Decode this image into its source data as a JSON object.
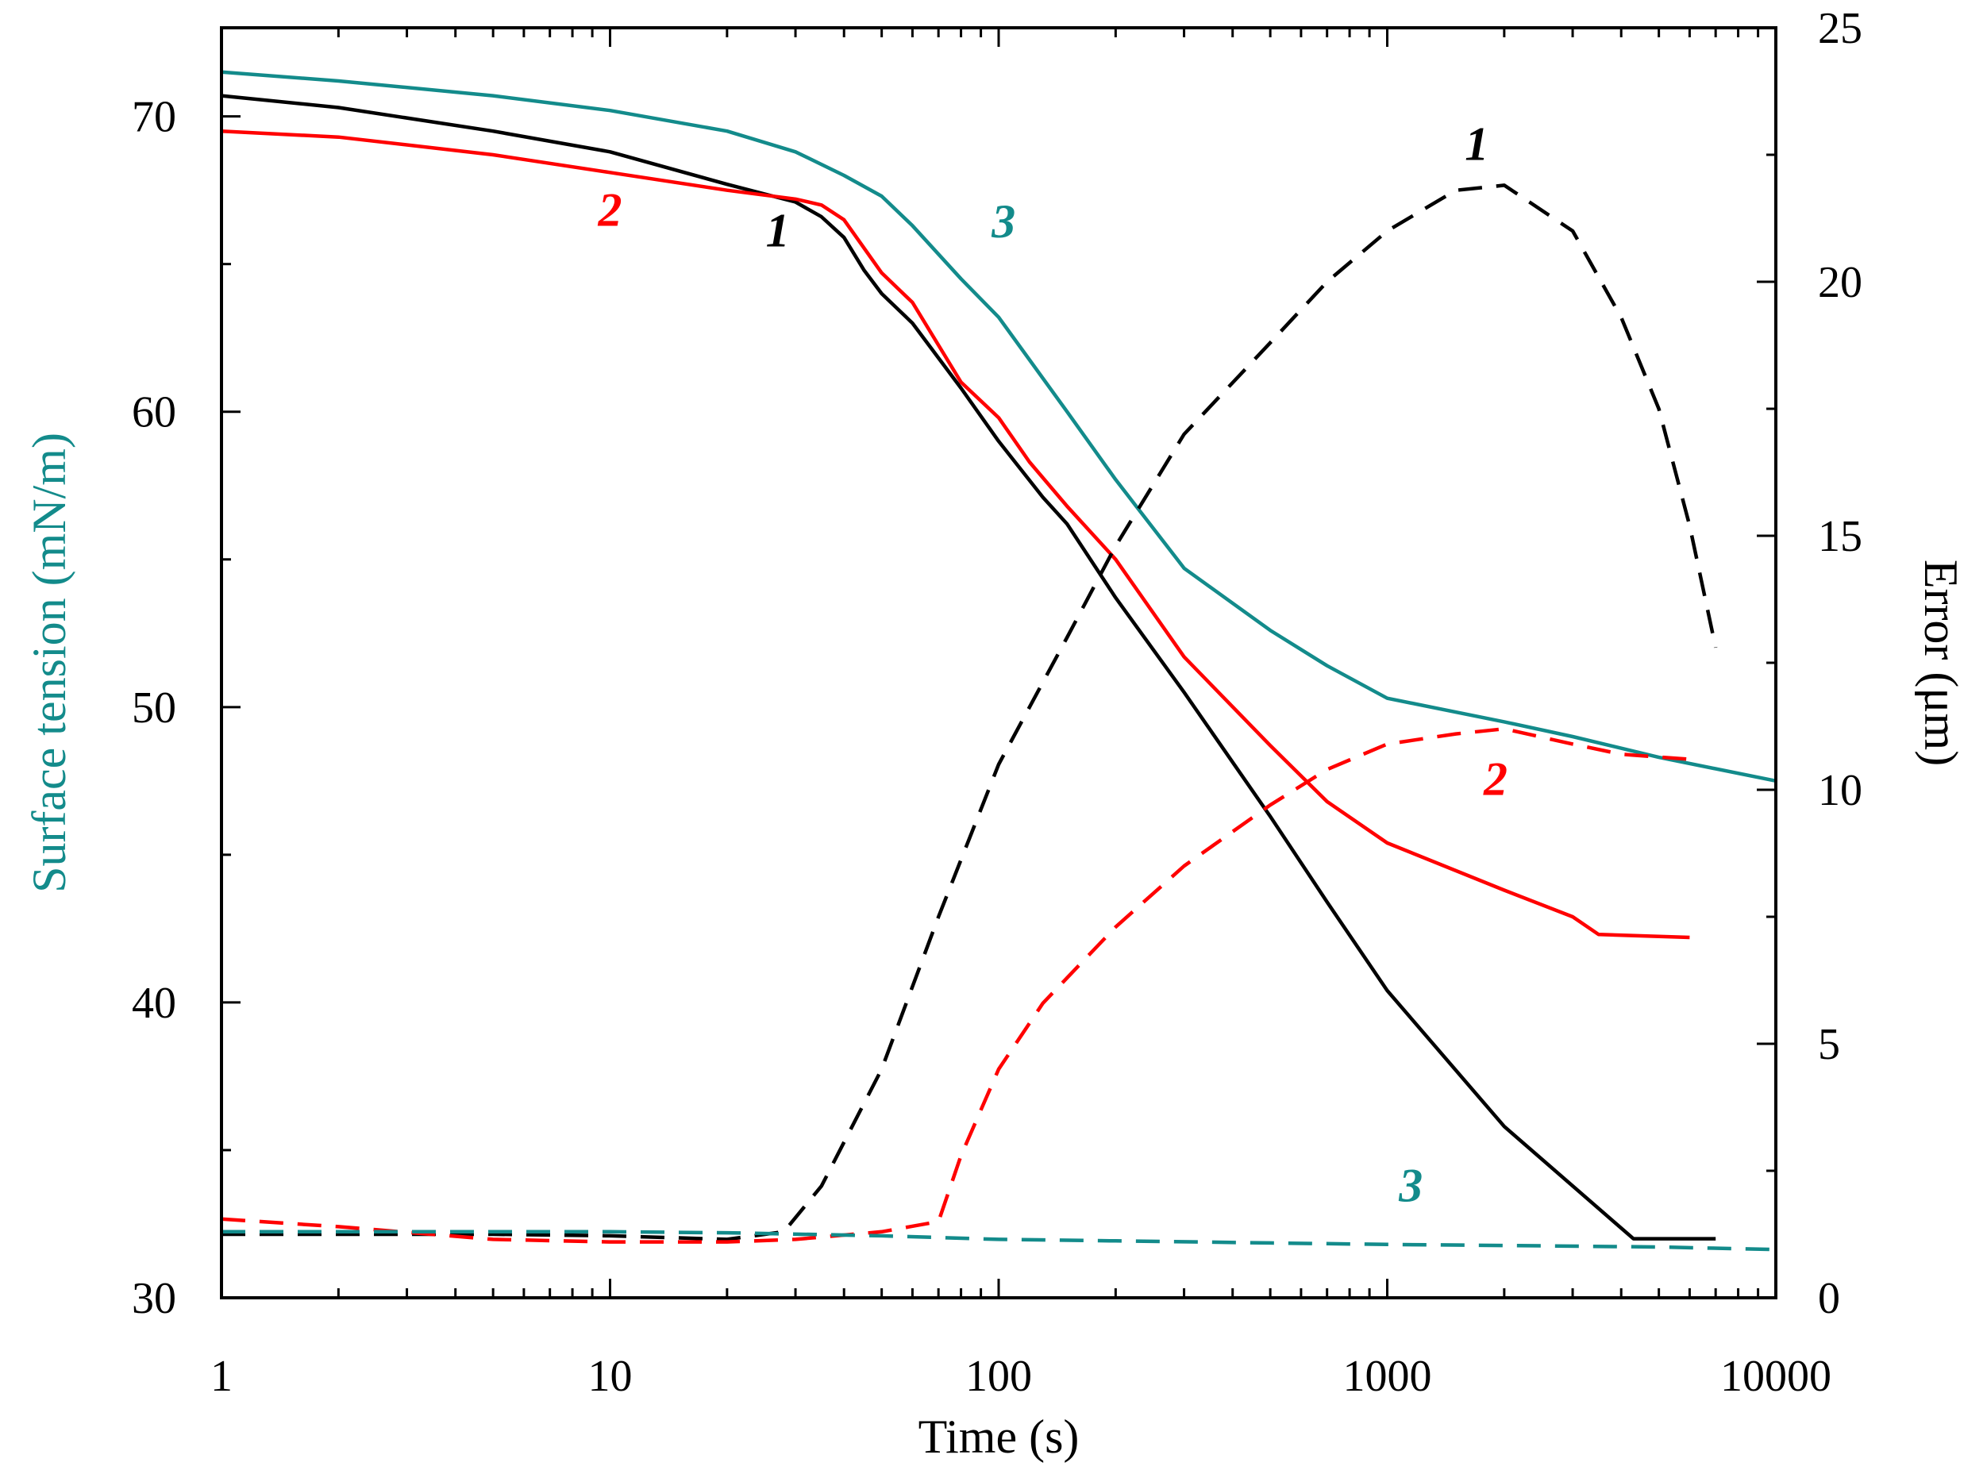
{
  "chart_data": {
    "type": "line",
    "xscale": "log",
    "xlabel": "Time (s)",
    "ylabel_left": "Surface tension (mN/m)",
    "ylabel_right": "Error (μm)",
    "xlim": [
      1,
      10000
    ],
    "ylim_left": [
      30,
      73
    ],
    "ylim_right": [
      0,
      25
    ],
    "x_ticks": [
      1,
      10,
      100,
      1000,
      10000
    ],
    "x_tick_labels": [
      "1",
      "10",
      "100",
      "1000",
      "10000"
    ],
    "y_left_ticks": [
      30,
      40,
      50,
      60,
      70
    ],
    "y_left_tick_labels": [
      "30",
      "40",
      "50",
      "60",
      "70"
    ],
    "y_right_ticks": [
      0,
      5,
      10,
      15,
      20,
      25
    ],
    "y_right_tick_labels": [
      "0",
      "5",
      "10",
      "15",
      "20",
      "25"
    ],
    "colors": {
      "s1": "#000000",
      "s2": "#ff0000",
      "s3": "#138b8b",
      "ylabel": "#138b8b"
    },
    "series": [
      {
        "name": "Surface tension 1",
        "axis": "left",
        "style": "solid",
        "color": "#000000",
        "x": [
          1,
          2,
          5,
          10,
          20,
          30,
          35,
          40,
          45,
          50,
          60,
          80,
          100,
          130,
          150,
          200,
          300,
          500,
          700,
          1000,
          2000,
          4300,
          7000
        ],
        "y": [
          70.7,
          70.3,
          69.5,
          68.8,
          67.7,
          67.1,
          66.6,
          65.9,
          64.8,
          64.0,
          63.0,
          60.8,
          59.0,
          57.1,
          56.2,
          53.7,
          50.5,
          46.3,
          43.4,
          40.4,
          35.8,
          32.0,
          32.0
        ]
      },
      {
        "name": "Surface tension 2",
        "axis": "left",
        "style": "solid",
        "color": "#ff0000",
        "x": [
          1,
          2,
          5,
          10,
          20,
          30,
          35,
          40,
          50,
          60,
          80,
          100,
          120,
          150,
          200,
          300,
          500,
          700,
          1000,
          2000,
          3000,
          3500,
          6000
        ],
        "y": [
          69.5,
          69.3,
          68.7,
          68.1,
          67.5,
          67.2,
          67.0,
          66.5,
          64.7,
          63.7,
          61.0,
          59.8,
          58.3,
          56.8,
          55.0,
          51.7,
          48.7,
          46.8,
          45.4,
          43.8,
          42.9,
          42.3,
          42.2
        ]
      },
      {
        "name": "Surface tension 3",
        "axis": "left",
        "style": "solid",
        "color": "#138b8b",
        "x": [
          1,
          2,
          5,
          10,
          20,
          30,
          40,
          50,
          60,
          80,
          100,
          150,
          200,
          300,
          500,
          700,
          1000,
          2000,
          3000,
          5000,
          10000
        ],
        "y": [
          71.5,
          71.2,
          70.7,
          70.2,
          69.5,
          68.8,
          68.0,
          67.3,
          66.3,
          64.5,
          63.2,
          60.0,
          57.7,
          54.7,
          52.6,
          51.4,
          50.3,
          49.5,
          49.0,
          48.3,
          47.5
        ]
      },
      {
        "name": "Error 1",
        "axis": "right",
        "style": "dashed",
        "color": "#000000",
        "x": [
          1,
          2,
          5,
          10,
          20,
          28,
          35,
          50,
          70,
          100,
          150,
          200,
          300,
          500,
          700,
          1000,
          1500,
          2000,
          3000,
          4000,
          5000,
          6000,
          7000
        ],
        "y": [
          1.25,
          1.25,
          1.25,
          1.22,
          1.15,
          1.3,
          2.2,
          4.5,
          7.5,
          10.5,
          13.0,
          14.8,
          17.0,
          18.8,
          20.0,
          21.0,
          21.8,
          21.9,
          21.0,
          19.3,
          17.5,
          15.2,
          12.8
        ]
      },
      {
        "name": "Error 2",
        "axis": "right",
        "style": "dashed",
        "color": "#ff0000",
        "x": [
          1,
          2,
          5,
          10,
          20,
          30,
          50,
          70,
          80,
          100,
          130,
          200,
          300,
          500,
          700,
          1000,
          1500,
          2000,
          3000,
          4000,
          6000
        ],
        "y": [
          1.55,
          1.4,
          1.15,
          1.1,
          1.1,
          1.15,
          1.3,
          1.5,
          2.8,
          4.5,
          5.8,
          7.3,
          8.5,
          9.7,
          10.4,
          10.9,
          11.1,
          11.2,
          10.9,
          10.7,
          10.6
        ]
      },
      {
        "name": "Error 3",
        "axis": "right",
        "style": "dashed",
        "color": "#138b8b",
        "x": [
          1,
          2,
          5,
          10,
          20,
          50,
          100,
          200,
          500,
          1000,
          2000,
          5000,
          10000
        ],
        "y": [
          1.3,
          1.3,
          1.3,
          1.3,
          1.28,
          1.22,
          1.15,
          1.12,
          1.08,
          1.05,
          1.03,
          1.0,
          0.95
        ]
      }
    ],
    "annotations": [
      {
        "text": "1",
        "color": "#000000",
        "x": 27,
        "y": 65.6,
        "axis": "left"
      },
      {
        "text": "2",
        "color": "#ff0000",
        "x": 10,
        "y": 66.3,
        "axis": "left"
      },
      {
        "text": "3",
        "color": "#138b8b",
        "x": 103,
        "y": 65.9,
        "axis": "left"
      },
      {
        "text": "1",
        "color": "#000000",
        "x": 1700,
        "y": 22.4,
        "axis": "right"
      },
      {
        "text": "2",
        "color": "#ff0000",
        "x": 1900,
        "y": 9.9,
        "axis": "right"
      },
      {
        "text": "3",
        "color": "#138b8b",
        "x": 1150,
        "y": 1.9,
        "axis": "right"
      }
    ]
  }
}
